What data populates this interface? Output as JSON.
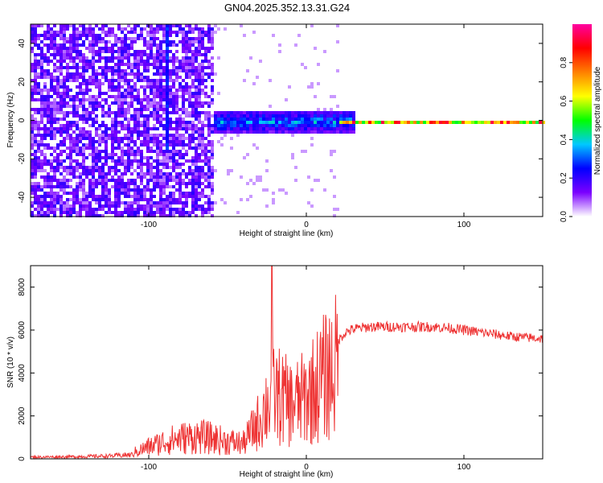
{
  "title": "GN04.2025.352.13.31.G24",
  "chart_data": [
    {
      "type": "heatmap",
      "title": "GN04.2025.352.13.31.G24",
      "xlabel": "Height of straight line (km)",
      "ylabel": "Frequency (Hz)",
      "xlim": [
        -175,
        150
      ],
      "ylim": [
        -50,
        50
      ],
      "x_ticks": [
        "-100",
        "0",
        "100"
      ],
      "y_ticks": [
        "-40",
        "-20",
        "0",
        "20",
        "40"
      ],
      "colorbar": {
        "label": "Normalized spectral amplitude",
        "range": [
          0,
          1
        ],
        "ticks": [
          "0.0",
          "0.2",
          "0.4",
          "0.6",
          "0.8"
        ],
        "colors": [
          "#ffffff",
          "#7b00ff",
          "#0000ff",
          "#00c8ff",
          "#00ff00",
          "#ffff00",
          "#ff8000",
          "#ff0000",
          "#ff00a0"
        ]
      },
      "features": [
        {
          "x_range": [
            -175,
            -60
          ],
          "y_range": [
            -50,
            50
          ],
          "amplitude": 0.15,
          "note": "broadband noise"
        },
        {
          "x_range": [
            -60,
            30
          ],
          "y_center": 0,
          "half_width_hz": 6,
          "amplitude": 0.35
        },
        {
          "x_range": [
            20,
            150
          ],
          "y_center": 0,
          "half_width_hz": 1,
          "amplitude": 0.9
        },
        {
          "x": -90,
          "y_range": [
            -15,
            50
          ],
          "amplitude": 0.2,
          "note": "vertical streak"
        }
      ]
    },
    {
      "type": "line",
      "xlabel": "Height of straight line (km)",
      "ylabel": "SNR (10 * v/v)",
      "xlim": [
        -175,
        150
      ],
      "ylim": [
        0,
        9000
      ],
      "x_ticks": [
        "-100",
        "0",
        "100"
      ],
      "y_ticks": [
        "0",
        "2000",
        "4000",
        "6000",
        "8000"
      ],
      "line_color": "#ee3333",
      "x": [
        -175,
        -150,
        -125,
        -110,
        -100,
        -90,
        -80,
        -70,
        -60,
        -50,
        -40,
        -30,
        -25,
        -20,
        -15,
        -10,
        -5,
        0,
        10,
        20,
        25,
        30,
        40,
        50,
        60,
        70,
        80,
        90,
        100,
        110,
        120,
        130,
        140,
        150
      ],
      "y": [
        150,
        180,
        250,
        350,
        700,
        1000,
        1200,
        1300,
        1200,
        1000,
        900,
        2200,
        3200,
        3800,
        3500,
        3200,
        3300,
        3600,
        4600,
        5500,
        5900,
        6050,
        6150,
        6150,
        6150,
        6150,
        6150,
        6100,
        6000,
        5900,
        5800,
        5700,
        5650,
        5600
      ],
      "spike": {
        "x": -22,
        "y": 9000
      }
    }
  ]
}
